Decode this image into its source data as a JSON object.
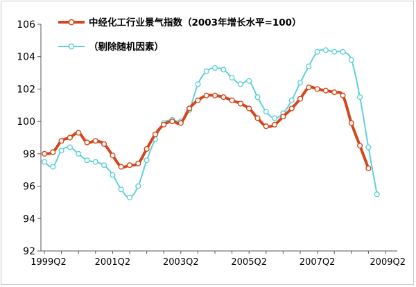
{
  "chart_data": {
    "type": "line",
    "title": "",
    "xlabel": "",
    "ylabel": "",
    "ylim": [
      92,
      106
    ],
    "yticks": [
      92,
      94,
      96,
      98,
      100,
      102,
      104,
      106
    ],
    "ytick_labels": [
      "92",
      "94",
      "96",
      "98",
      "100",
      "102",
      "104",
      "106"
    ],
    "xtick_labels": [
      "1999Q2",
      "2001Q2",
      "2003Q2",
      "2005Q2",
      "2007Q2",
      "2009Q2"
    ],
    "xtick_index": [
      0,
      8,
      16,
      24,
      32,
      40
    ],
    "legend_position": "top",
    "grid": false,
    "series": [
      {
        "name": "中经化工行业景气指数（2003年增长水平=100）",
        "color": "#d4461c",
        "marker_fill": "#ffffff",
        "values": [
          98.0,
          98.1,
          98.8,
          99.0,
          99.3,
          98.7,
          98.8,
          98.6,
          97.9,
          97.2,
          97.3,
          97.4,
          98.3,
          99.2,
          99.8,
          100.0,
          99.9,
          100.8,
          101.3,
          101.6,
          101.6,
          101.5,
          101.3,
          101.1,
          100.8,
          100.2,
          99.7,
          99.8,
          100.3,
          100.8,
          101.4,
          102.1,
          102.0,
          101.9,
          101.8,
          101.6,
          99.9,
          98.5,
          97.1
        ]
      },
      {
        "name": "（剔除随机因素）",
        "color": "#5fd0d9",
        "marker_fill": "#ffffff",
        "values": [
          97.5,
          97.2,
          98.2,
          98.4,
          98.0,
          97.6,
          97.5,
          97.3,
          96.7,
          95.8,
          95.3,
          96.0,
          97.6,
          98.9,
          99.9,
          100.1,
          100.0,
          100.7,
          102.3,
          103.1,
          103.3,
          103.2,
          102.7,
          102.3,
          102.5,
          101.5,
          100.6,
          100.2,
          100.5,
          101.3,
          102.4,
          103.4,
          104.3,
          104.4,
          104.3,
          104.3,
          103.8,
          101.5,
          98.4,
          95.5
        ]
      }
    ]
  }
}
